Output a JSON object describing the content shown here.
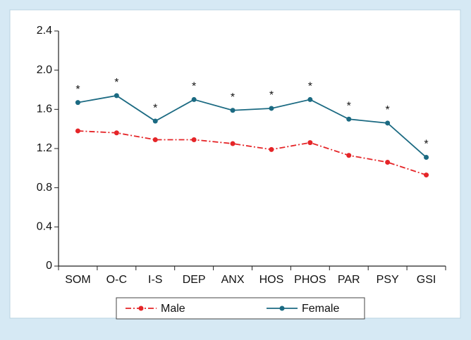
{
  "chart_data": {
    "type": "line",
    "categories": [
      "SOM",
      "O-C",
      "I-S",
      "DEP",
      "ANX",
      "HOS",
      "PHOS",
      "PAR",
      "PSY",
      "GSI"
    ],
    "series": [
      {
        "name": "Male",
        "color": "#e52528",
        "values": [
          1.38,
          1.36,
          1.29,
          1.29,
          1.25,
          1.19,
          1.26,
          1.13,
          1.06,
          0.93
        ]
      },
      {
        "name": "Female",
        "color": "#1b6a82",
        "values": [
          1.67,
          1.74,
          1.48,
          1.7,
          1.59,
          1.61,
          1.7,
          1.5,
          1.46,
          1.11
        ]
      }
    ],
    "annotations": [
      "*",
      "*",
      "*",
      "*",
      "*",
      "*",
      "*",
      "*",
      "*",
      "*"
    ],
    "ylim": [
      0,
      2.4
    ],
    "yticks": [
      0,
      0.4,
      0.8,
      1.2,
      1.6,
      {
        "value": 2,
        "label": "2.0"
      },
      2.4
    ],
    "legend": "bottom"
  }
}
